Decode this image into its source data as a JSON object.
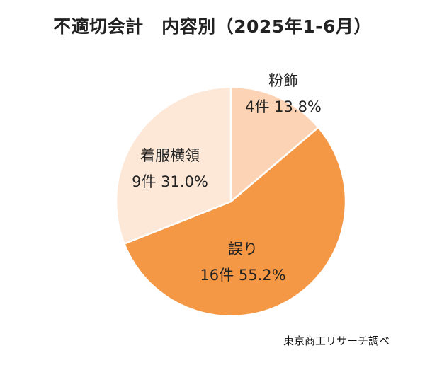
{
  "chart_data": {
    "type": "pie",
    "title": "不適切会計　内容別（2025年1-6月）",
    "source": "東京商工リサーチ調べ",
    "slices": [
      {
        "name": "粉飾",
        "count_label": "4件",
        "count": 4,
        "percent": 13.8,
        "percent_label": "13.8%",
        "color": "#fcd3b4"
      },
      {
        "name": "誤り",
        "count_label": "16件",
        "count": 16,
        "percent": 55.2,
        "percent_label": "55.2%",
        "color": "#f59845"
      },
      {
        "name": "着服横領",
        "count_label": "9件",
        "count": 9,
        "percent": 31.0,
        "percent_label": "31.0%",
        "color": "#fde7d7"
      }
    ]
  }
}
